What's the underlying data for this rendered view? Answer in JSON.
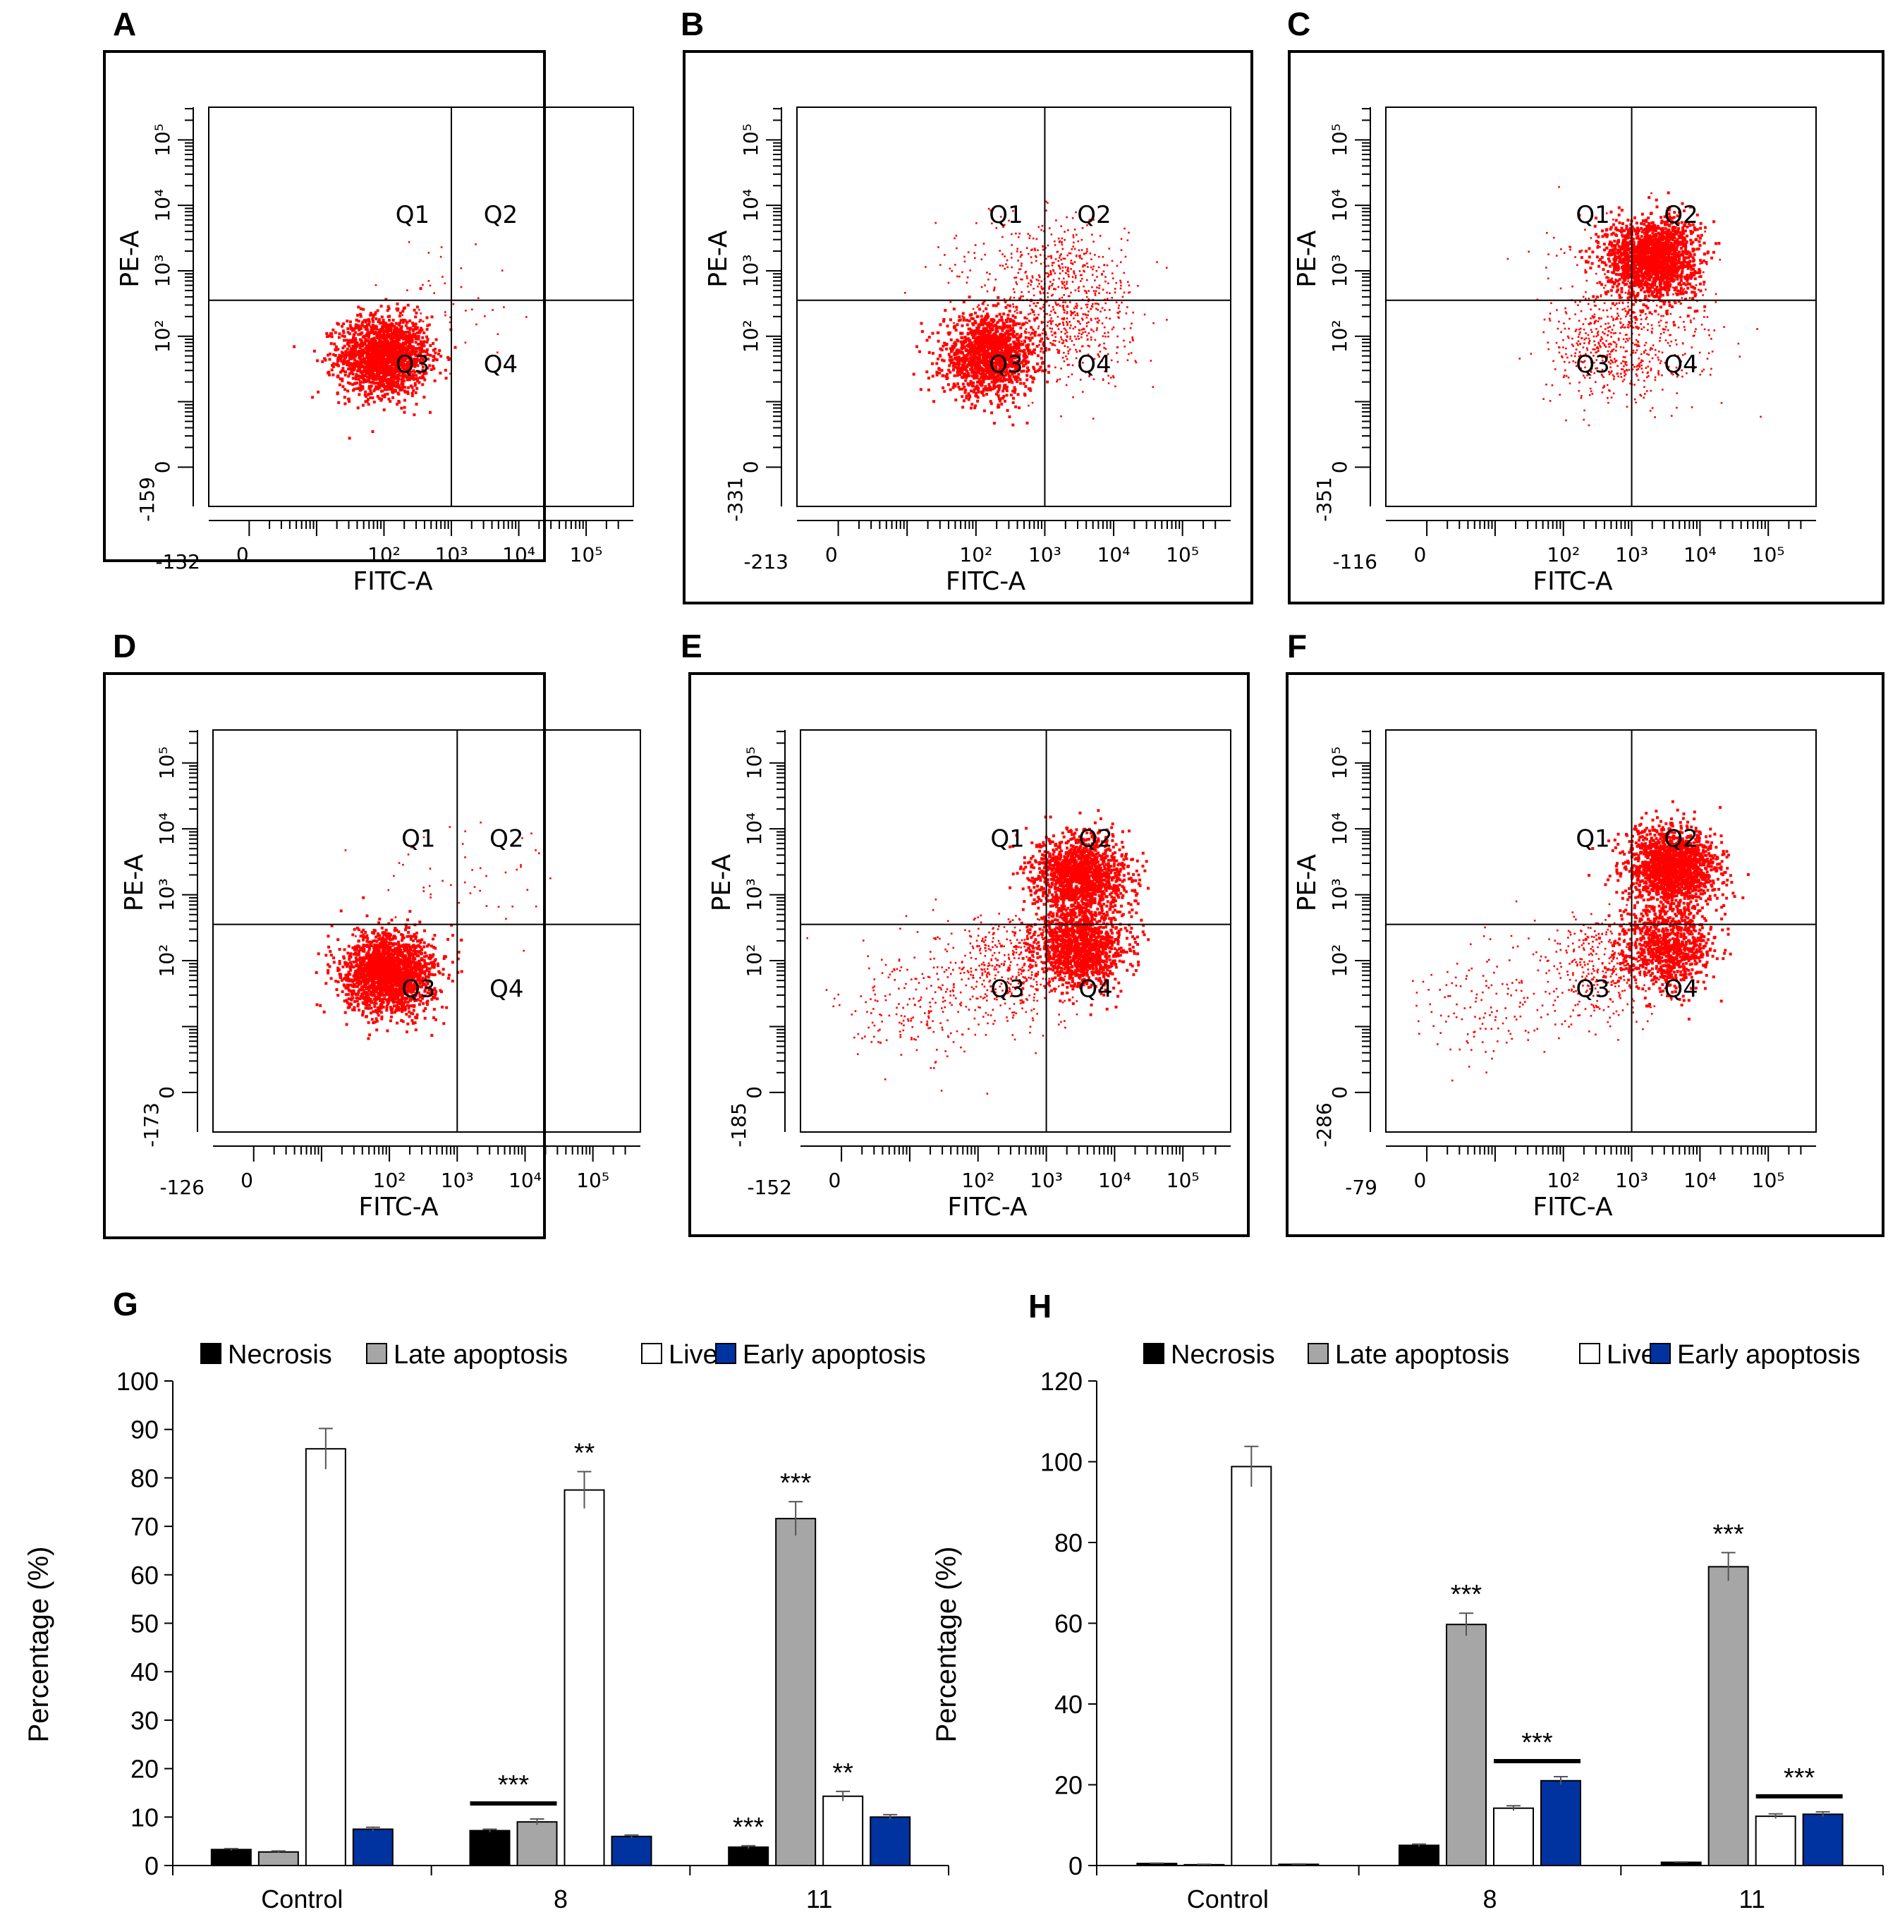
{
  "figure": {
    "scatter_common": {
      "x_label": "FITC-A",
      "y_label": "PE-A",
      "quadrants": [
        "Q1",
        "Q2",
        "Q3",
        "Q4"
      ],
      "dot_color": "#ff0000"
    }
  },
  "chart_data": [
    {
      "panel": "A",
      "type": "scatter",
      "xlabel": "FITC-A",
      "ylabel": "PE-A",
      "x_min_label": "-132",
      "y_min_label": "-159",
      "clusters": [
        {
          "name": "live",
          "fitc_log": 2.0,
          "pe_log": 1.7,
          "count": 1800,
          "density": "dense"
        },
        {
          "name": "trail",
          "fitc_log": 2.9,
          "pe_log": 2.6,
          "count": 40,
          "density": "sparse"
        }
      ]
    },
    {
      "panel": "B",
      "type": "scatter",
      "xlabel": "FITC-A",
      "ylabel": "PE-A",
      "x_min_label": "-213",
      "y_min_label": "-331",
      "clusters": [
        {
          "name": "live",
          "fitc_log": 2.2,
          "pe_log": 1.7,
          "count": 1500,
          "density": "dense"
        },
        {
          "name": "early",
          "fitc_log": 3.4,
          "pe_log": 2.1,
          "count": 350,
          "density": "medium"
        },
        {
          "name": "late",
          "fitc_log": 3.3,
          "pe_log": 2.9,
          "count": 350,
          "density": "medium"
        },
        {
          "name": "necrotic",
          "fitc_log": 2.4,
          "pe_log": 3.0,
          "count": 100,
          "density": "sparse"
        }
      ]
    },
    {
      "panel": "C",
      "type": "scatter",
      "xlabel": "FITC-A",
      "ylabel": "PE-A",
      "x_min_label": "-116",
      "y_min_label": "-351",
      "clusters": [
        {
          "name": "late",
          "fitc_log": 3.3,
          "pe_log": 3.2,
          "count": 1800,
          "density": "dense"
        },
        {
          "name": "live",
          "fitc_log": 2.7,
          "pe_log": 1.8,
          "count": 450,
          "density": "medium"
        },
        {
          "name": "early",
          "fitc_log": 3.4,
          "pe_log": 2.2,
          "count": 200,
          "density": "sparse"
        },
        {
          "name": "necrotic",
          "fitc_log": 2.4,
          "pe_log": 2.8,
          "count": 40,
          "density": "sparse"
        }
      ]
    },
    {
      "panel": "D",
      "type": "scatter",
      "xlabel": "FITC-A",
      "ylabel": "PE-A",
      "x_min_label": "-126",
      "y_min_label": "-173",
      "clusters": [
        {
          "name": "live",
          "fitc_log": 2.0,
          "pe_log": 1.8,
          "count": 2000,
          "density": "dense"
        },
        {
          "name": "q1",
          "fitc_log": 2.3,
          "pe_log": 3.3,
          "count": 25,
          "density": "sparse"
        },
        {
          "name": "q2",
          "fitc_log": 3.7,
          "pe_log": 3.3,
          "count": 25,
          "density": "sparse"
        }
      ]
    },
    {
      "panel": "E",
      "type": "scatter",
      "xlabel": "FITC-A",
      "ylabel": "PE-A",
      "x_min_label": "-152",
      "y_min_label": "-185",
      "clusters": [
        {
          "name": "late",
          "fitc_log": 3.5,
          "pe_log": 3.3,
          "count": 1500,
          "density": "dense"
        },
        {
          "name": "early",
          "fitc_log": 3.5,
          "pe_log": 2.2,
          "count": 1300,
          "density": "dense"
        },
        {
          "name": "live",
          "fitc_log": 2.5,
          "pe_log": 1.9,
          "count": 450,
          "density": "medium"
        },
        {
          "name": "tail",
          "fitc_log": 1.0,
          "pe_log": 1.3,
          "count": 200,
          "density": "sparse"
        }
      ]
    },
    {
      "panel": "F",
      "type": "scatter",
      "xlabel": "FITC-A",
      "ylabel": "PE-A",
      "x_min_label": "-79",
      "y_min_label": "-286",
      "clusters": [
        {
          "name": "late",
          "fitc_log": 3.6,
          "pe_log": 3.4,
          "count": 1700,
          "density": "dense"
        },
        {
          "name": "early",
          "fitc_log": 3.5,
          "pe_log": 2.2,
          "count": 900,
          "density": "dense"
        },
        {
          "name": "live",
          "fitc_log": 2.6,
          "pe_log": 1.9,
          "count": 350,
          "density": "medium"
        },
        {
          "name": "tail",
          "fitc_log": 1.0,
          "pe_log": 1.4,
          "count": 150,
          "density": "sparse"
        }
      ]
    },
    {
      "panel": "G",
      "type": "bar",
      "title": "",
      "xlabel": "",
      "ylabel": "Percentage (%)",
      "ylim": [
        0,
        100
      ],
      "yticks": [
        0,
        10,
        20,
        30,
        40,
        50,
        60,
        70,
        80,
        90,
        100
      ],
      "categories": [
        "Control",
        "8",
        "11"
      ],
      "series": [
        {
          "name": "Necrosis",
          "color": "#000000",
          "values": [
            3.3,
            7.2,
            3.8
          ],
          "errors": [
            0.2,
            0.3,
            0.3
          ]
        },
        {
          "name": "Late apoptosis",
          "color": "#a6a6a6",
          "values": [
            2.8,
            9.0,
            71.6
          ],
          "errors": [
            0.2,
            0.6,
            3.5
          ]
        },
        {
          "name": "Live",
          "color": "#ffffff",
          "values": [
            86.0,
            77.5,
            14.3
          ],
          "errors": [
            4.2,
            3.8,
            1.0
          ]
        },
        {
          "name": "Early apoptosis",
          "color": "#0033a0",
          "values": [
            7.5,
            6.0,
            10.0
          ],
          "errors": [
            0.4,
            0.3,
            0.5
          ]
        }
      ],
      "annotations": [
        {
          "text": "***",
          "target": "8: Necrosis + Late apoptosis (bracket)"
        },
        {
          "text": "**",
          "target": "8: Live"
        },
        {
          "text": "***",
          "target": "11: Necrosis"
        },
        {
          "text": "***",
          "target": "11: Late apoptosis"
        },
        {
          "text": "**",
          "target": "11: Live"
        }
      ]
    },
    {
      "panel": "H",
      "type": "bar",
      "title": "",
      "xlabel": "",
      "ylabel": "Percentage (%)",
      "ylim": [
        0,
        120
      ],
      "yticks": [
        0,
        20,
        40,
        60,
        80,
        100,
        120
      ],
      "categories": [
        "Control",
        "8",
        "11"
      ],
      "series": [
        {
          "name": "Necrosis",
          "color": "#000000",
          "values": [
            0.5,
            5.0,
            0.8
          ],
          "errors": [
            0.1,
            0.3,
            0.1
          ]
        },
        {
          "name": "Late apoptosis",
          "color": "#a6a6a6",
          "values": [
            0.2,
            59.7,
            74.0
          ],
          "errors": [
            0.1,
            2.8,
            3.5
          ]
        },
        {
          "name": "Live",
          "color": "#ffffff",
          "values": [
            98.8,
            14.2,
            12.2
          ],
          "errors": [
            5.0,
            0.6,
            0.6
          ]
        },
        {
          "name": "Early apoptosis",
          "color": "#0033a0",
          "values": [
            0.3,
            21.0,
            12.7
          ],
          "errors": [
            0.1,
            1.0,
            0.6
          ]
        }
      ],
      "annotations": [
        {
          "text": "***",
          "target": "8: Late apoptosis"
        },
        {
          "text": "***",
          "target": "8: Live + Early apoptosis (bracket)"
        },
        {
          "text": "***",
          "target": "11: Late apoptosis"
        },
        {
          "text": "***",
          "target": "11: Live + Early apoptosis (bracket)"
        }
      ]
    }
  ]
}
